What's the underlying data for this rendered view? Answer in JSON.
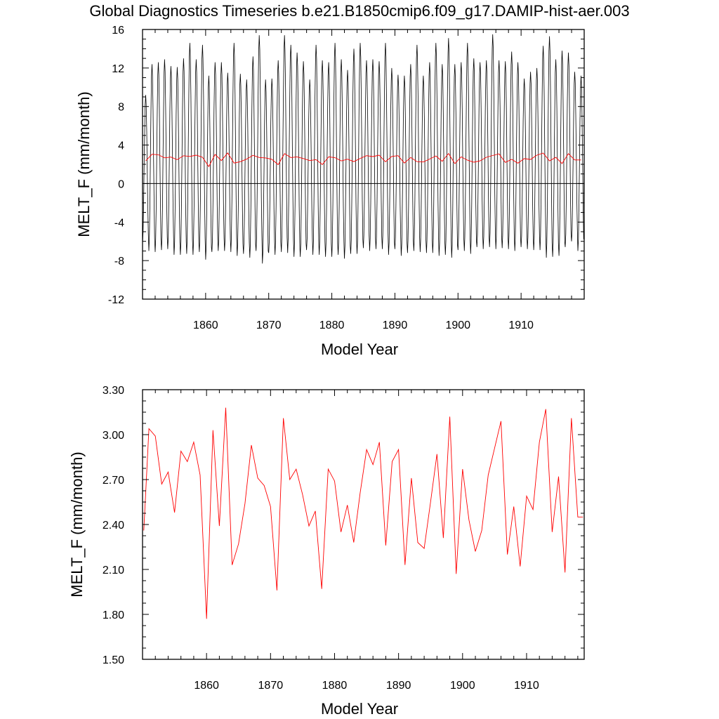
{
  "title": "Global Diagnostics Timeseries b.e21.B1850cmip6.f09_g17.DAMIP-hist-aer.003",
  "colors": {
    "monthly": "#000000",
    "annual": "#ff0000",
    "axes": "#000000",
    "background": "#ffffff"
  },
  "chart_data": [
    {
      "type": "line",
      "xlabel": "Model Year",
      "ylabel": "MELT_F (mm/month)",
      "xlim": [
        1850,
        1920
      ],
      "ylim": [
        -12,
        16
      ],
      "xticks": [
        1860,
        1870,
        1880,
        1890,
        1900,
        1910
      ],
      "xtick_labels": [
        "1860",
        "1870",
        "1880",
        "1890",
        "1900",
        "1910"
      ],
      "yticks": [
        -12,
        -8,
        -4,
        0,
        4,
        8,
        12,
        16
      ],
      "ytick_labels": [
        "-12",
        "-8",
        "-4",
        "0",
        "4",
        "8",
        "12",
        "16"
      ],
      "zero_line": true,
      "grid": false,
      "series": [
        {
          "color": "#000000",
          "values_note_x": "monthly, year 1850.0 to 1919.92",
          "monthly_peaks": [
            9.2,
            12.4,
            12.6,
            12.9,
            12.2,
            12.1,
            13.0,
            14.6,
            12.9,
            14.4,
            11.2,
            12.6,
            12.6,
            11.5,
            14.6,
            11.4,
            10.8,
            13.2,
            15.4,
            10.8,
            10.9,
            12.8,
            15.4,
            14.4,
            13.6,
            12.7,
            10.8,
            14.4,
            12.8,
            12.6,
            14.6,
            12.9,
            11.8,
            14.0,
            14.6,
            12.8,
            12.9,
            12.7,
            14.6,
            12.0,
            11.3,
            11.2,
            12.4,
            14.4,
            11.2,
            12.6,
            14.6,
            12.4,
            15.1,
            12.4,
            12.6,
            14.6,
            13.0,
            12.6,
            12.8,
            15.5,
            12.8,
            12.7,
            13.7,
            12.6,
            10.9,
            11.6,
            12.0,
            14.3,
            15.3,
            12.9,
            13.8,
            13.6,
            11.6,
            11.2
          ],
          "monthly_troughs": [
            -6.2,
            -7.0,
            -7.1,
            -6.9,
            -6.8,
            -7.4,
            -7.4,
            -7.3,
            -7.4,
            -7.1,
            -7.9,
            -7.1,
            -7.0,
            -7.0,
            -7.1,
            -7.5,
            -7.3,
            -7.7,
            -7.0,
            -8.3,
            -7.2,
            -7.4,
            -7.1,
            -7.2,
            -7.6,
            -7.6,
            -6.9,
            -7.4,
            -7.4,
            -7.6,
            -7.6,
            -7.4,
            -7.8,
            -7.3,
            -7.3,
            -6.7,
            -7.0,
            -6.8,
            -6.8,
            -7.4,
            -6.8,
            -7.5,
            -7.2,
            -7.0,
            -7.1,
            -7.2,
            -7.2,
            -7.5,
            -7.4,
            -7.7,
            -6.9,
            -7.0,
            -7.3,
            -6.6,
            -6.8,
            -6.6,
            -6.8,
            -6.7,
            -6.8,
            -7.0,
            -6.6,
            -6.8,
            -6.9,
            -6.9,
            -7.7,
            -7.6,
            -7.5,
            -6.6,
            -6.0,
            -7.0
          ]
        },
        {
          "color": "#ff0000",
          "x": [
            1850.5,
            1851.5,
            1852.5,
            1853.5,
            1854.5,
            1855.5,
            1856.5,
            1857.5,
            1858.5,
            1859.5,
            1860.5,
            1861.5,
            1862.5,
            1863.5,
            1864.5,
            1865.5,
            1866.5,
            1867.5,
            1868.5,
            1869.5,
            1870.5,
            1871.5,
            1872.5,
            1873.5,
            1874.5,
            1875.5,
            1876.5,
            1877.5,
            1878.5,
            1879.5,
            1880.5,
            1881.5,
            1882.5,
            1883.5,
            1884.5,
            1885.5,
            1886.5,
            1887.5,
            1888.5,
            1889.5,
            1890.5,
            1891.5,
            1892.5,
            1893.5,
            1894.5,
            1895.5,
            1896.5,
            1897.5,
            1898.5,
            1899.5,
            1900.5,
            1901.5,
            1902.5,
            1903.5,
            1904.5,
            1905.5,
            1906.5,
            1907.5,
            1908.5,
            1909.5,
            1910.5,
            1911.5,
            1912.5,
            1913.5,
            1914.5,
            1915.5,
            1916.5,
            1917.5,
            1918.5,
            1919.5
          ],
          "y": [
            2.36,
            3.04,
            2.99,
            2.67,
            2.75,
            2.48,
            2.89,
            2.82,
            2.95,
            2.73,
            1.77,
            3.03,
            2.39,
            3.18,
            2.13,
            2.27,
            2.54,
            2.93,
            2.71,
            2.66,
            2.52,
            1.96,
            3.11,
            2.7,
            2.77,
            2.6,
            2.39,
            2.49,
            1.97,
            2.77,
            2.69,
            2.35,
            2.53,
            2.28,
            2.61,
            2.9,
            2.8,
            2.95,
            2.26,
            2.82,
            2.9,
            2.13,
            2.71,
            2.28,
            2.24,
            2.55,
            2.87,
            2.31,
            3.12,
            2.07,
            2.77,
            2.43,
            2.22,
            2.36,
            2.73,
            2.91,
            3.09,
            2.2,
            2.52,
            2.12,
            2.59,
            2.5,
            2.95,
            3.17,
            2.35,
            2.72,
            2.08,
            3.11,
            2.45,
            2.45
          ]
        }
      ]
    },
    {
      "type": "line",
      "xlabel": "Model Year",
      "ylabel": "MELT_F (mm/month)",
      "xlim": [
        1850,
        1919
      ],
      "ylim": [
        1.5,
        3.3
      ],
      "xticks": [
        1860,
        1870,
        1880,
        1890,
        1900,
        1910
      ],
      "xtick_labels": [
        "1860",
        "1870",
        "1880",
        "1890",
        "1900",
        "1910"
      ],
      "yticks": [
        1.5,
        1.8,
        2.1,
        2.4,
        2.7,
        3.0,
        3.3
      ],
      "ytick_labels": [
        "1.50",
        "1.80",
        "2.10",
        "2.40",
        "2.70",
        "3.00",
        "3.30"
      ],
      "grid": false,
      "series": [
        {
          "color": "#ff0000",
          "x": [
            1850.2,
            1851.0,
            1852.0,
            1853.0,
            1854.0,
            1855.0,
            1856.0,
            1857.0,
            1858.0,
            1859.0,
            1860.0,
            1861.0,
            1862.0,
            1863.0,
            1864.0,
            1865.0,
            1866.0,
            1867.0,
            1868.0,
            1869.0,
            1870.0,
            1871.0,
            1872.0,
            1873.0,
            1874.0,
            1875.0,
            1876.0,
            1877.0,
            1878.0,
            1879.0,
            1880.0,
            1881.0,
            1882.0,
            1883.0,
            1884.0,
            1885.0,
            1886.0,
            1887.0,
            1888.0,
            1889.0,
            1890.0,
            1891.0,
            1892.0,
            1893.0,
            1894.0,
            1895.0,
            1896.0,
            1897.0,
            1898.0,
            1899.0,
            1900.0,
            1901.0,
            1902.0,
            1903.0,
            1904.0,
            1905.0,
            1906.0,
            1907.0,
            1908.0,
            1909.0,
            1910.0,
            1911.0,
            1912.0,
            1913.0,
            1914.0,
            1915.0,
            1916.0,
            1917.0,
            1918.0,
            1918.8
          ],
          "y": [
            2.36,
            3.04,
            2.99,
            2.67,
            2.75,
            2.48,
            2.89,
            2.82,
            2.95,
            2.73,
            1.77,
            3.03,
            2.39,
            3.18,
            2.13,
            2.27,
            2.54,
            2.93,
            2.71,
            2.66,
            2.52,
            1.96,
            3.11,
            2.7,
            2.77,
            2.6,
            2.39,
            2.49,
            1.97,
            2.77,
            2.69,
            2.35,
            2.53,
            2.28,
            2.61,
            2.9,
            2.8,
            2.95,
            2.26,
            2.82,
            2.9,
            2.13,
            2.71,
            2.28,
            2.24,
            2.55,
            2.87,
            2.31,
            3.12,
            2.07,
            2.77,
            2.43,
            2.22,
            2.36,
            2.73,
            2.91,
            3.09,
            2.2,
            2.52,
            2.12,
            2.59,
            2.5,
            2.95,
            3.17,
            2.35,
            2.72,
            2.08,
            3.11,
            2.45,
            2.45
          ]
        }
      ]
    }
  ]
}
